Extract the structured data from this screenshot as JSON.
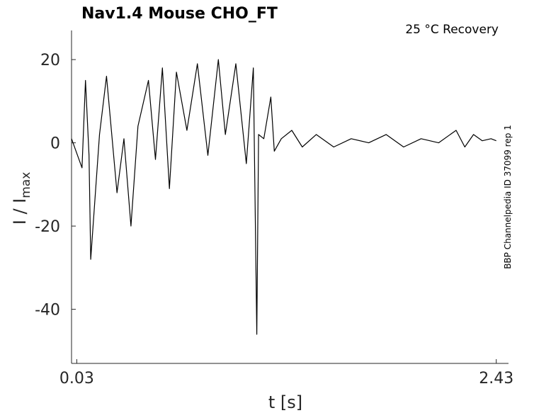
{
  "chart_data": {
    "type": "line",
    "title": "Nav1.4  Mouse  CHO_FT",
    "annotation": "25 °C  Recovery",
    "side_label": "BBP Channelpedia ID 37099 rep 1",
    "xlabel": "t [s]",
    "ylabel_main": "I / I",
    "ylabel_sub": "max",
    "xlim": [
      0.0,
      2.5
    ],
    "ylim": [
      -53,
      27
    ],
    "xticks": [
      {
        "value": 0.03,
        "label": "0.03"
      },
      {
        "value": 2.43,
        "label": "2.43"
      }
    ],
    "yticks": [
      {
        "value": 20,
        "label": "20"
      },
      {
        "value": 0,
        "label": "0"
      },
      {
        "value": -20,
        "label": "-20"
      },
      {
        "value": -40,
        "label": "-40"
      }
    ],
    "grid": false,
    "line_color": "#000000",
    "series": [
      {
        "x": [
          0.0,
          0.06,
          0.08,
          0.1,
          0.11,
          0.16,
          0.2,
          0.26,
          0.3,
          0.34,
          0.38,
          0.44,
          0.48,
          0.52,
          0.56,
          0.6,
          0.66,
          0.72,
          0.78,
          0.84,
          0.88,
          0.94,
          1.0,
          1.04,
          1.06,
          1.07,
          1.1,
          1.14,
          1.16,
          1.2,
          1.26,
          1.32,
          1.4,
          1.5,
          1.6,
          1.7,
          1.8,
          1.9,
          2.0,
          2.1,
          2.2,
          2.25,
          2.3,
          2.35,
          2.4,
          2.43
        ],
        "y": [
          1,
          -6,
          15,
          -3,
          -28,
          2,
          16,
          -12,
          1,
          -20,
          4,
          15,
          -4,
          18,
          -11,
          17,
          3,
          19,
          -3,
          20,
          2,
          19,
          -5,
          18,
          -46,
          2,
          1,
          11,
          -2,
          1,
          3,
          -1,
          2,
          -1,
          1,
          0,
          2,
          -1,
          1,
          0,
          3,
          -1,
          2,
          0.5,
          1,
          0.5
        ]
      }
    ]
  }
}
